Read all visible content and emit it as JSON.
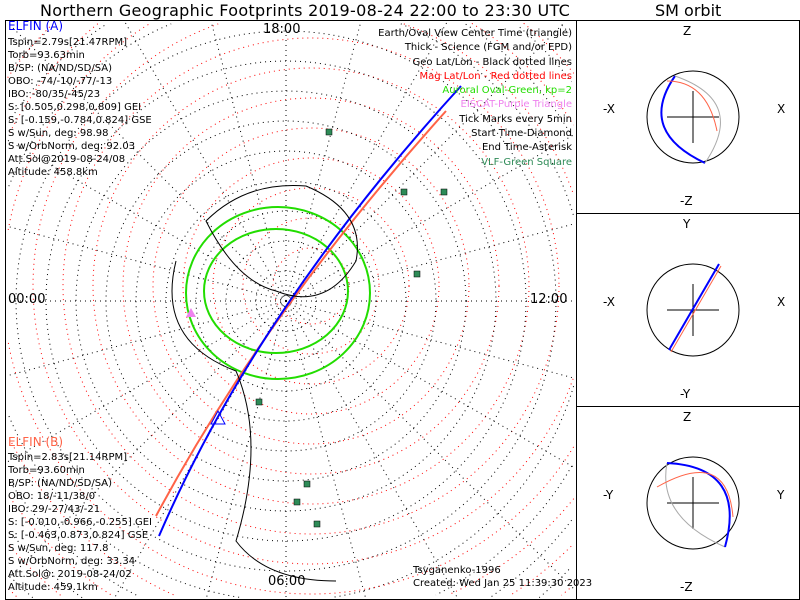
{
  "title": "Northern Geographic Footprints 2019-08-24 22:00 to 23:30 UTC",
  "sm_title": "SM orbit",
  "colors": {
    "elfin_a": "#0000ff",
    "elfin_b": "#ff6347",
    "auroral": "#22dd00",
    "eiscat": "#ee82ee",
    "vlf": "#2e8b57",
    "mag_grid": "#ff0000"
  },
  "time_labels": {
    "top": "18:00",
    "left": "00:00",
    "right": "12:00",
    "bottom": "06:00"
  },
  "elfin_a": {
    "name": "ELFIN (A)",
    "lines": [
      "Tspin=2.79s[21.47RPM]",
      "Torb=93.63min",
      "B/SP: (NA/ND/SD/SA)",
      "OBO: -74/-10/-77/-13",
      "IBO: -80/35/-45/23",
      "S: [0.505,0.298,0.809] GEI",
      "S: [-0.159,-0.784,0.824] GSE",
      "S w/Sun, deg: 98.98",
      "S w/OrbNorm, deg: 92.03",
      "Att.Sol@2019-08-24/08",
      "Altitude: 458.8km"
    ]
  },
  "elfin_b": {
    "name": "ELFIN (B)",
    "lines": [
      "Tspin=2.83s[21.14RPM]",
      "Torb=93.60min",
      "B/SP: (NA/ND/SD/SA)",
      "OBO: 18/-11/38/0",
      "IBO: 29/-27/43/-21",
      "S: [-0.010,-0.966,-0.255] GEI",
      "S: [-0.463,0.873,0.824] GSE",
      "S w/Sun, deg: 117.8",
      "S w/OrbNorm, deg: 33.34",
      "Att.Sol@: 2019-08-24/02",
      "Altitude: 459.1km"
    ]
  },
  "legend": [
    {
      "text": "Earth/Oval View Center Time (triangle)",
      "color": "#000000"
    },
    {
      "text": "Thick - Science (FGM and/or EPD)",
      "color": "#000000"
    },
    {
      "text": "Geo Lat/Lon - Black dotted lines",
      "color": "#000000"
    },
    {
      "text": "Mag Lat/Lon - Red dotted lines",
      "color": "#ff0000"
    },
    {
      "text": "Auroral Oval-Green, kp=2",
      "color": "#22dd00"
    },
    {
      "text": "EISCAT-Purple Triangle",
      "color": "#ee82ee"
    },
    {
      "text": "Tick Marks every 5min",
      "color": "#000000"
    },
    {
      "text": "Start Time-Diamond",
      "color": "#000000"
    },
    {
      "text": "End Time-Asterisk",
      "color": "#000000"
    },
    {
      "text": "VLF-Green Square",
      "color": "#2e8b57"
    }
  ],
  "footer": {
    "model": "Tsyganenko-1996",
    "created": "Created: Wed Jan 25 11:39:30 2023"
  },
  "sm_panels": [
    {
      "top": "Z",
      "bottom": "-Z",
      "left": "-X",
      "right": "X"
    },
    {
      "top": "Y",
      "bottom": "-Y",
      "left": "-X",
      "right": "X"
    },
    {
      "top": "Z",
      "bottom": "-Z",
      "left": "-Y",
      "right": "Y"
    }
  ]
}
